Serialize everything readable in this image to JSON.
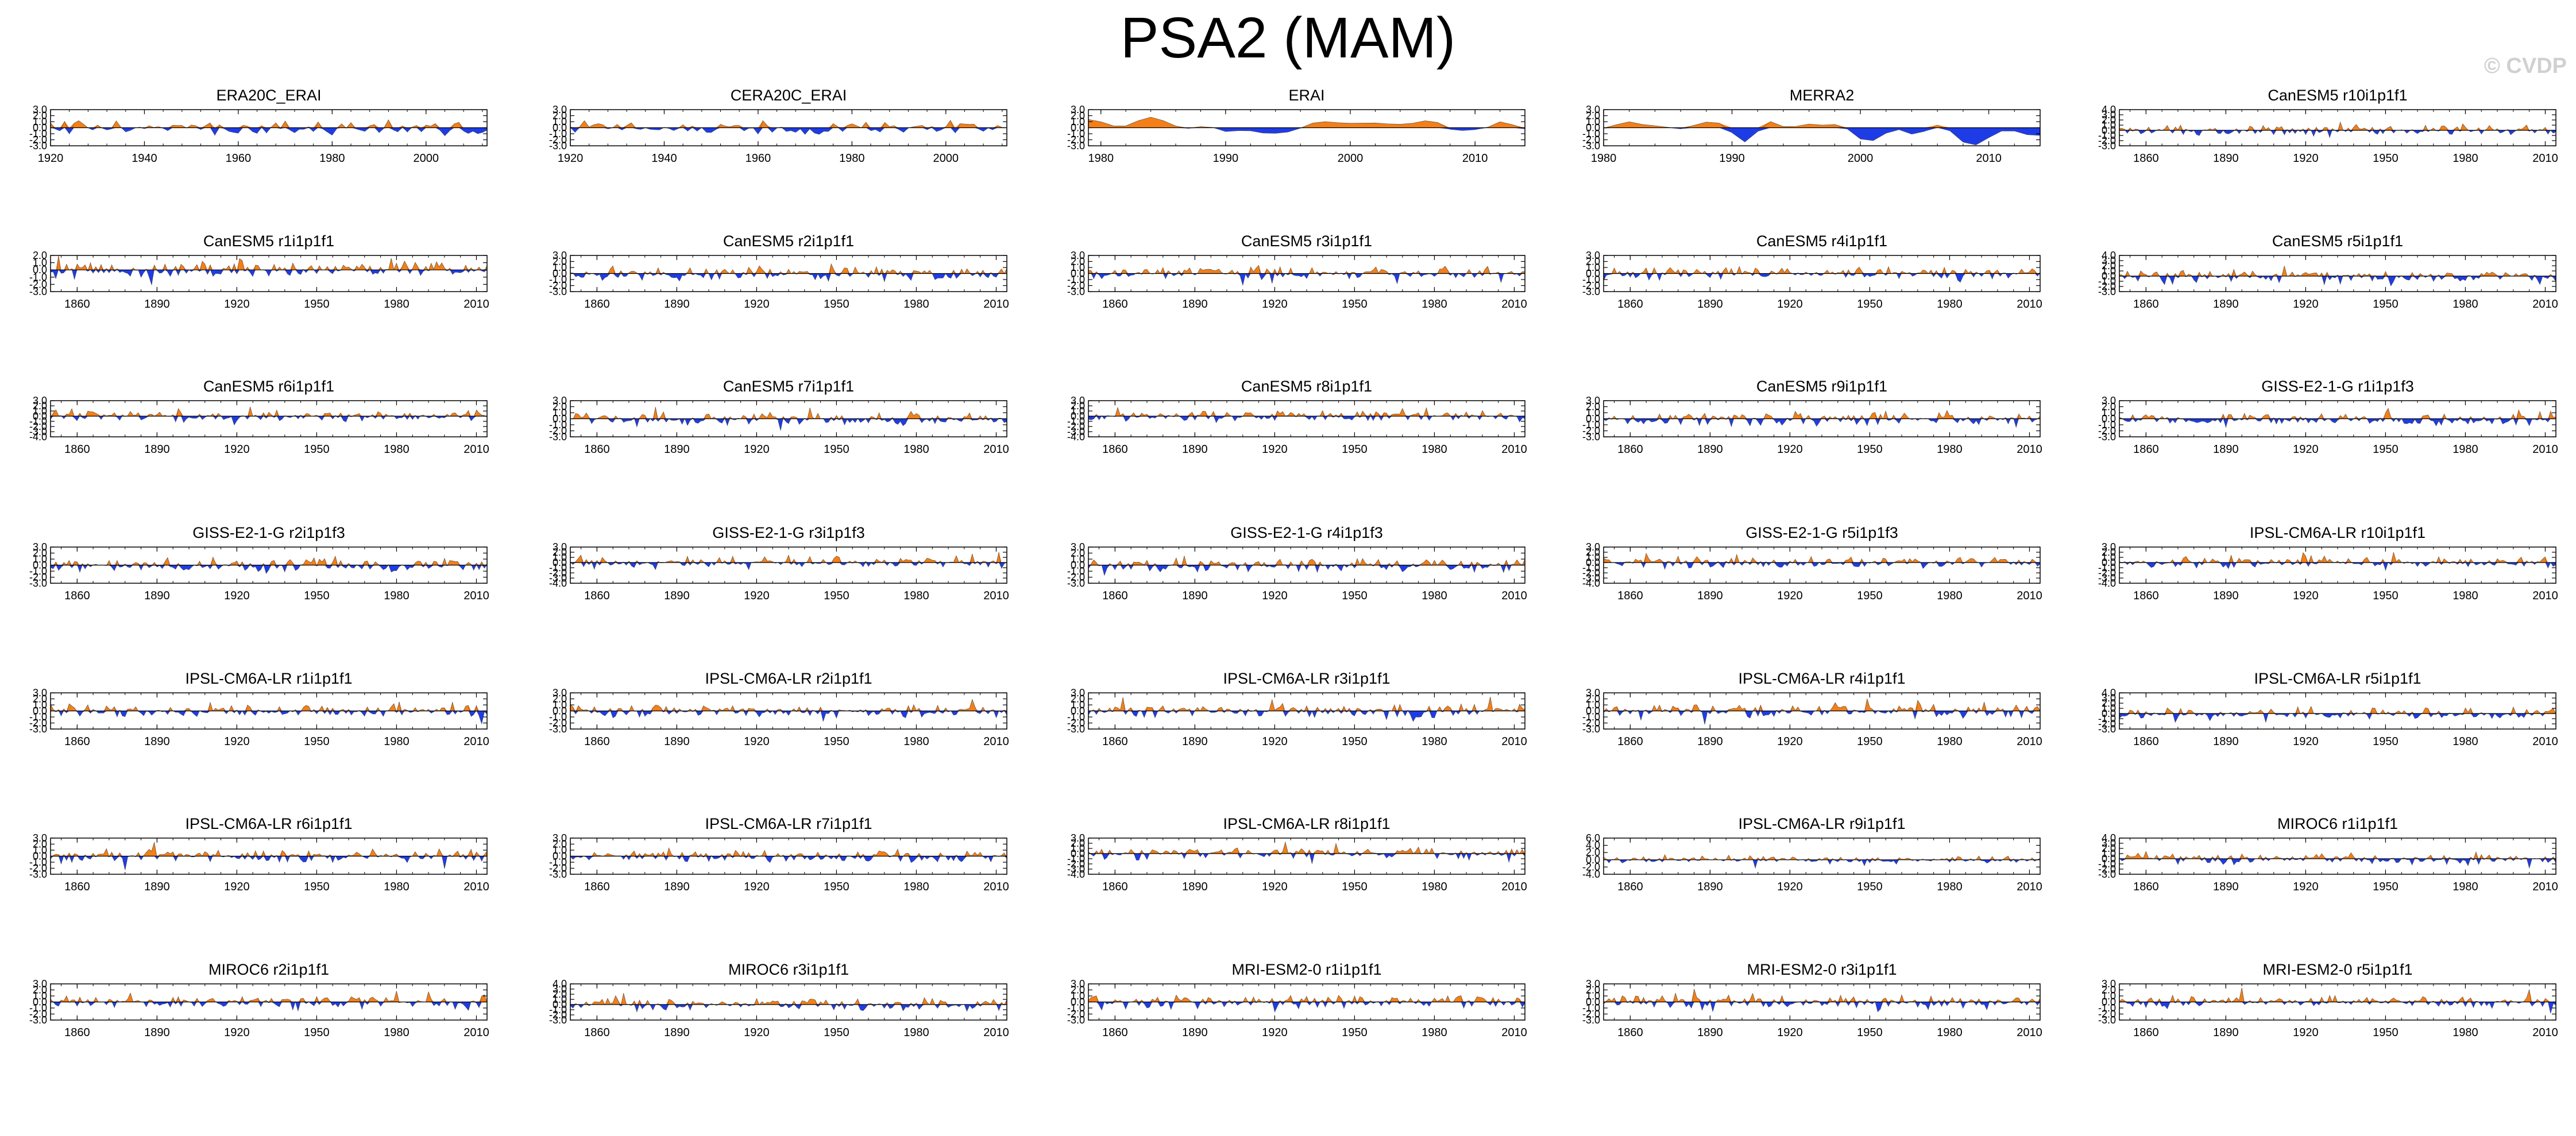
{
  "title": "PSA2 (MAM)",
  "watermark": "© CVDP",
  "colors": {
    "positive": "#f57f17",
    "negative": "#1e3ce6",
    "axis": "#000000"
  },
  "chart_data": [
    {
      "type": "area",
      "title": "ERA20C_ERAI",
      "xrange": [
        1920,
        2013
      ],
      "xticks": [
        1920,
        1940,
        1960,
        1980,
        2000
      ],
      "ylim": [
        -3.0,
        3.0
      ],
      "yticks": [
        -3.0,
        -2.0,
        -1.0,
        0.0,
        1.0,
        2.0,
        3.0
      ],
      "seed": 1,
      "smooth": 1,
      "amp": 0.7
    },
    {
      "type": "area",
      "title": "CERA20C_ERAI",
      "xrange": [
        1920,
        2013
      ],
      "xticks": [
        1920,
        1940,
        1960,
        1980,
        2000
      ],
      "ylim": [
        -3.0,
        3.0
      ],
      "yticks": [
        -3.0,
        -2.0,
        -1.0,
        0.0,
        1.0,
        2.0,
        3.0
      ],
      "seed": 2,
      "smooth": 1,
      "amp": 0.7
    },
    {
      "type": "area",
      "title": "ERAI",
      "xrange": [
        1979,
        2014
      ],
      "xticks": [
        1980,
        1990,
        2000,
        2010
      ],
      "ylim": [
        -3.0,
        3.0
      ],
      "yticks": [
        -3.0,
        -2.0,
        -1.0,
        0.0,
        1.0,
        2.0,
        3.0
      ],
      "seed": 3,
      "smooth": 0,
      "amp": 1.0
    },
    {
      "type": "area",
      "title": "MERRA2",
      "xrange": [
        1980,
        2014
      ],
      "xticks": [
        1980,
        1990,
        2000,
        2010
      ],
      "ylim": [
        -3.0,
        3.0
      ],
      "yticks": [
        -3.0,
        -2.0,
        -1.0,
        0.0,
        1.0,
        2.0,
        3.0
      ],
      "seed": 4,
      "smooth": 0,
      "amp": 1.0
    },
    {
      "type": "area",
      "title": "CanESM5 r10i1p1f1",
      "xrange": [
        1850,
        2014
      ],
      "xticks": [
        1860,
        1890,
        1920,
        1950,
        1980,
        2010
      ],
      "ylim": [
        -3.0,
        4.0
      ],
      "yticks": [
        -3.0,
        -2.0,
        -1.0,
        0.0,
        1.0,
        2.0,
        3.0,
        4.0
      ],
      "seed": 5,
      "smooth": 1,
      "amp": 0.7
    },
    {
      "type": "area",
      "title": "CanESM5 r1i1p1f1",
      "xrange": [
        1850,
        2014
      ],
      "xticks": [
        1860,
        1890,
        1920,
        1950,
        1980,
        2010
      ],
      "ylim": [
        -3.0,
        2.0
      ],
      "yticks": [
        -3.0,
        -2.0,
        -1.0,
        0.0,
        1.0,
        2.0
      ],
      "seed": 6,
      "smooth": 1,
      "amp": 0.7
    },
    {
      "type": "area",
      "title": "CanESM5 r2i1p1f1",
      "xrange": [
        1850,
        2014
      ],
      "xticks": [
        1860,
        1890,
        1920,
        1950,
        1980,
        2010
      ],
      "ylim": [
        -3.0,
        3.0
      ],
      "yticks": [
        -3.0,
        -2.0,
        -1.0,
        0.0,
        1.0,
        2.0,
        3.0
      ],
      "seed": 7,
      "smooth": 1,
      "amp": 0.7
    },
    {
      "type": "area",
      "title": "CanESM5 r3i1p1f1",
      "xrange": [
        1850,
        2014
      ],
      "xticks": [
        1860,
        1890,
        1920,
        1950,
        1980,
        2010
      ],
      "ylim": [
        -3.0,
        3.0
      ],
      "yticks": [
        -3.0,
        -2.0,
        -1.0,
        0.0,
        1.0,
        2.0,
        3.0
      ],
      "seed": 8,
      "smooth": 1,
      "amp": 0.7
    },
    {
      "type": "area",
      "title": "CanESM5 r4i1p1f1",
      "xrange": [
        1850,
        2014
      ],
      "xticks": [
        1860,
        1890,
        1920,
        1950,
        1980,
        2010
      ],
      "ylim": [
        -3.0,
        3.0
      ],
      "yticks": [
        -3.0,
        -2.0,
        -1.0,
        0.0,
        1.0,
        2.0,
        3.0
      ],
      "seed": 9,
      "smooth": 1,
      "amp": 0.7
    },
    {
      "type": "area",
      "title": "CanESM5 r5i1p1f1",
      "xrange": [
        1850,
        2014
      ],
      "xticks": [
        1860,
        1890,
        1920,
        1950,
        1980,
        2010
      ],
      "ylim": [
        -3.0,
        4.0
      ],
      "yticks": [
        -3.0,
        -2.0,
        -1.0,
        0.0,
        1.0,
        2.0,
        3.0,
        4.0
      ],
      "seed": 10,
      "smooth": 1,
      "amp": 0.7
    },
    {
      "type": "area",
      "title": "CanESM5 r6i1p1f1",
      "xrange": [
        1850,
        2014
      ],
      "xticks": [
        1860,
        1890,
        1920,
        1950,
        1980,
        2010
      ],
      "ylim": [
        -4.0,
        3.0
      ],
      "yticks": [
        -4.0,
        -3.0,
        -2.0,
        -1.0,
        0.0,
        1.0,
        2.0,
        3.0
      ],
      "seed": 11,
      "smooth": 1,
      "amp": 0.7
    },
    {
      "type": "area",
      "title": "CanESM5 r7i1p1f1",
      "xrange": [
        1850,
        2014
      ],
      "xticks": [
        1860,
        1890,
        1920,
        1950,
        1980,
        2010
      ],
      "ylim": [
        -3.0,
        3.0
      ],
      "yticks": [
        -3.0,
        -2.0,
        -1.0,
        0.0,
        1.0,
        2.0,
        3.0
      ],
      "seed": 12,
      "smooth": 1,
      "amp": 0.7
    },
    {
      "type": "area",
      "title": "CanESM5 r8i1p1f1",
      "xrange": [
        1850,
        2014
      ],
      "xticks": [
        1860,
        1890,
        1920,
        1950,
        1980,
        2010
      ],
      "ylim": [
        -4.0,
        3.0
      ],
      "yticks": [
        -4.0,
        -3.0,
        -2.0,
        -1.0,
        0.0,
        1.0,
        2.0,
        3.0
      ],
      "seed": 13,
      "smooth": 1,
      "amp": 0.7
    },
    {
      "type": "area",
      "title": "CanESM5 r9i1p1f1",
      "xrange": [
        1850,
        2014
      ],
      "xticks": [
        1860,
        1890,
        1920,
        1950,
        1980,
        2010
      ],
      "ylim": [
        -3.0,
        3.0
      ],
      "yticks": [
        -3.0,
        -2.0,
        -1.0,
        0.0,
        1.0,
        2.0,
        3.0
      ],
      "seed": 14,
      "smooth": 1,
      "amp": 0.7
    },
    {
      "type": "area",
      "title": "GISS-E2-1-G r1i1p1f3",
      "xrange": [
        1850,
        2014
      ],
      "xticks": [
        1860,
        1890,
        1920,
        1950,
        1980,
        2010
      ],
      "ylim": [
        -3.0,
        3.0
      ],
      "yticks": [
        -3.0,
        -2.0,
        -1.0,
        0.0,
        1.0,
        2.0,
        3.0
      ],
      "seed": 15,
      "smooth": 1,
      "amp": 0.7
    },
    {
      "type": "area",
      "title": "GISS-E2-1-G r2i1p1f3",
      "xrange": [
        1850,
        2014
      ],
      "xticks": [
        1860,
        1890,
        1920,
        1950,
        1980,
        2010
      ],
      "ylim": [
        -3.0,
        3.0
      ],
      "yticks": [
        -3.0,
        -2.0,
        -1.0,
        0.0,
        1.0,
        2.0,
        3.0
      ],
      "seed": 16,
      "smooth": 1,
      "amp": 0.7
    },
    {
      "type": "area",
      "title": "GISS-E2-1-G r3i1p1f3",
      "xrange": [
        1850,
        2014
      ],
      "xticks": [
        1860,
        1890,
        1920,
        1950,
        1980,
        2010
      ],
      "ylim": [
        -4.0,
        3.0
      ],
      "yticks": [
        -4.0,
        -3.0,
        -2.0,
        -1.0,
        0.0,
        1.0,
        2.0,
        3.0
      ],
      "seed": 17,
      "smooth": 1,
      "amp": 0.7
    },
    {
      "type": "area",
      "title": "GISS-E2-1-G r4i1p1f3",
      "xrange": [
        1850,
        2014
      ],
      "xticks": [
        1860,
        1890,
        1920,
        1950,
        1980,
        2010
      ],
      "ylim": [
        -3.0,
        3.0
      ],
      "yticks": [
        -3.0,
        -2.0,
        -1.0,
        0.0,
        1.0,
        2.0,
        3.0
      ],
      "seed": 18,
      "smooth": 1,
      "amp": 0.7
    },
    {
      "type": "area",
      "title": "GISS-E2-1-G r5i1p1f3",
      "xrange": [
        1850,
        2014
      ],
      "xticks": [
        1860,
        1890,
        1920,
        1950,
        1980,
        2010
      ],
      "ylim": [
        -4.0,
        3.0
      ],
      "yticks": [
        -4.0,
        -3.0,
        -2.0,
        -1.0,
        0.0,
        1.0,
        2.0,
        3.0
      ],
      "seed": 19,
      "smooth": 1,
      "amp": 0.7
    },
    {
      "type": "area",
      "title": "IPSL-CM6A-LR r10i1p1f1",
      "xrange": [
        1850,
        2014
      ],
      "xticks": [
        1860,
        1890,
        1920,
        1950,
        1980,
        2010
      ],
      "ylim": [
        -4.0,
        3.0
      ],
      "yticks": [
        -4.0,
        -3.0,
        -2.0,
        -1.0,
        0.0,
        1.0,
        2.0,
        3.0
      ],
      "seed": 20,
      "smooth": 1,
      "amp": 0.7
    },
    {
      "type": "area",
      "title": "IPSL-CM6A-LR r1i1p1f1",
      "xrange": [
        1850,
        2014
      ],
      "xticks": [
        1860,
        1890,
        1920,
        1950,
        1980,
        2010
      ],
      "ylim": [
        -3.0,
        3.0
      ],
      "yticks": [
        -3.0,
        -2.0,
        -1.0,
        0.0,
        1.0,
        2.0,
        3.0
      ],
      "seed": 21,
      "smooth": 1,
      "amp": 0.7
    },
    {
      "type": "area",
      "title": "IPSL-CM6A-LR r2i1p1f1",
      "xrange": [
        1850,
        2014
      ],
      "xticks": [
        1860,
        1890,
        1920,
        1950,
        1980,
        2010
      ],
      "ylim": [
        -3.0,
        3.0
      ],
      "yticks": [
        -3.0,
        -2.0,
        -1.0,
        0.0,
        1.0,
        2.0,
        3.0
      ],
      "seed": 22,
      "smooth": 1,
      "amp": 0.7
    },
    {
      "type": "area",
      "title": "IPSL-CM6A-LR r3i1p1f1",
      "xrange": [
        1850,
        2014
      ],
      "xticks": [
        1860,
        1890,
        1920,
        1950,
        1980,
        2010
      ],
      "ylim": [
        -3.0,
        3.0
      ],
      "yticks": [
        -3.0,
        -2.0,
        -1.0,
        0.0,
        1.0,
        2.0,
        3.0
      ],
      "seed": 23,
      "smooth": 1,
      "amp": 0.7
    },
    {
      "type": "area",
      "title": "IPSL-CM6A-LR r4i1p1f1",
      "xrange": [
        1850,
        2014
      ],
      "xticks": [
        1860,
        1890,
        1920,
        1950,
        1980,
        2010
      ],
      "ylim": [
        -3.0,
        3.0
      ],
      "yticks": [
        -3.0,
        -2.0,
        -1.0,
        0.0,
        1.0,
        2.0,
        3.0
      ],
      "seed": 24,
      "smooth": 1,
      "amp": 0.7
    },
    {
      "type": "area",
      "title": "IPSL-CM6A-LR r5i1p1f1",
      "xrange": [
        1850,
        2014
      ],
      "xticks": [
        1860,
        1890,
        1920,
        1950,
        1980,
        2010
      ],
      "ylim": [
        -3.0,
        4.0
      ],
      "yticks": [
        -3.0,
        -2.0,
        -1.0,
        0.0,
        1.0,
        2.0,
        3.0,
        4.0
      ],
      "seed": 25,
      "smooth": 1,
      "amp": 0.7
    },
    {
      "type": "area",
      "title": "IPSL-CM6A-LR r6i1p1f1",
      "xrange": [
        1850,
        2014
      ],
      "xticks": [
        1860,
        1890,
        1920,
        1950,
        1980,
        2010
      ],
      "ylim": [
        -3.0,
        3.0
      ],
      "yticks": [
        -3.0,
        -2.0,
        -1.0,
        0.0,
        1.0,
        2.0,
        3.0
      ],
      "seed": 26,
      "smooth": 1,
      "amp": 0.7
    },
    {
      "type": "area",
      "title": "IPSL-CM6A-LR r7i1p1f1",
      "xrange": [
        1850,
        2014
      ],
      "xticks": [
        1860,
        1890,
        1920,
        1950,
        1980,
        2010
      ],
      "ylim": [
        -3.0,
        3.0
      ],
      "yticks": [
        -3.0,
        -2.0,
        -1.0,
        0.0,
        1.0,
        2.0,
        3.0
      ],
      "seed": 27,
      "smooth": 1,
      "amp": 0.7
    },
    {
      "type": "area",
      "title": "IPSL-CM6A-LR r8i1p1f1",
      "xrange": [
        1850,
        2014
      ],
      "xticks": [
        1860,
        1890,
        1920,
        1950,
        1980,
        2010
      ],
      "ylim": [
        -4.0,
        3.0
      ],
      "yticks": [
        -4.0,
        -3.0,
        -2.0,
        -1.0,
        0.0,
        1.0,
        2.0,
        3.0
      ],
      "seed": 28,
      "smooth": 1,
      "amp": 0.7
    },
    {
      "type": "area",
      "title": "IPSL-CM6A-LR r9i1p1f1",
      "xrange": [
        1850,
        2014
      ],
      "xticks": [
        1860,
        1890,
        1920,
        1950,
        1980,
        2010
      ],
      "ylim": [
        -4.0,
        6.0
      ],
      "yticks": [
        -4.0,
        -2.0,
        0.0,
        2.0,
        4.0,
        6.0
      ],
      "seed": 29,
      "smooth": 1,
      "amp": 0.7
    },
    {
      "type": "area",
      "title": "MIROC6 r1i1p1f1",
      "xrange": [
        1850,
        2014
      ],
      "xticks": [
        1860,
        1890,
        1920,
        1950,
        1980,
        2010
      ],
      "ylim": [
        -3.0,
        4.0
      ],
      "yticks": [
        -3.0,
        -2.0,
        -1.0,
        0.0,
        1.0,
        2.0,
        3.0,
        4.0
      ],
      "seed": 30,
      "smooth": 1,
      "amp": 0.7
    },
    {
      "type": "area",
      "title": "MIROC6 r2i1p1f1",
      "xrange": [
        1850,
        2014
      ],
      "xticks": [
        1860,
        1890,
        1920,
        1950,
        1980,
        2010
      ],
      "ylim": [
        -3.0,
        3.0
      ],
      "yticks": [
        -3.0,
        -2.0,
        -1.0,
        0.0,
        1.0,
        2.0,
        3.0
      ],
      "seed": 31,
      "smooth": 1,
      "amp": 0.7
    },
    {
      "type": "area",
      "title": "MIROC6 r3i1p1f1",
      "xrange": [
        1850,
        2014
      ],
      "xticks": [
        1860,
        1890,
        1920,
        1950,
        1980,
        2010
      ],
      "ylim": [
        -3.0,
        4.0
      ],
      "yticks": [
        -3.0,
        -2.0,
        -1.0,
        0.0,
        1.0,
        2.0,
        3.0,
        4.0
      ],
      "seed": 32,
      "smooth": 1,
      "amp": 0.7
    },
    {
      "type": "area",
      "title": "MRI-ESM2-0 r1i1p1f1",
      "xrange": [
        1850,
        2014
      ],
      "xticks": [
        1860,
        1890,
        1920,
        1950,
        1980,
        2010
      ],
      "ylim": [
        -3.0,
        3.0
      ],
      "yticks": [
        -3.0,
        -2.0,
        -1.0,
        0.0,
        1.0,
        2.0,
        3.0
      ],
      "seed": 33,
      "smooth": 1,
      "amp": 0.7
    },
    {
      "type": "area",
      "title": "MRI-ESM2-0 r3i1p1f1",
      "xrange": [
        1850,
        2014
      ],
      "xticks": [
        1860,
        1890,
        1920,
        1950,
        1980,
        2010
      ],
      "ylim": [
        -3.0,
        3.0
      ],
      "yticks": [
        -3.0,
        -2.0,
        -1.0,
        0.0,
        1.0,
        2.0,
        3.0
      ],
      "seed": 34,
      "smooth": 1,
      "amp": 0.7
    },
    {
      "type": "area",
      "title": "MRI-ESM2-0 r5i1p1f1",
      "xrange": [
        1850,
        2014
      ],
      "xticks": [
        1860,
        1890,
        1920,
        1950,
        1980,
        2010
      ],
      "ylim": [
        -3.0,
        3.0
      ],
      "yticks": [
        -3.0,
        -2.0,
        -1.0,
        0.0,
        1.0,
        2.0,
        3.0
      ],
      "seed": 35,
      "smooth": 1,
      "amp": 0.7
    }
  ]
}
